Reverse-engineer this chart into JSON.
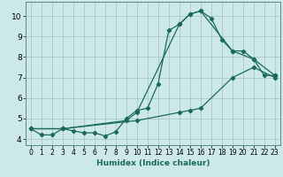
{
  "xlabel": "Humidex (Indice chaleur)",
  "bg_color": "#cce8e8",
  "grid_color": "#aac8c8",
  "line_color": "#1a6b5a",
  "spine_color": "#5a8a8a",
  "xlim": [
    -0.5,
    23.5
  ],
  "ylim": [
    3.7,
    10.7
  ],
  "yticks": [
    4,
    5,
    6,
    7,
    8,
    9,
    10
  ],
  "xticks": [
    0,
    1,
    2,
    3,
    4,
    5,
    6,
    7,
    8,
    9,
    10,
    11,
    12,
    13,
    14,
    15,
    16,
    17,
    18,
    19,
    20,
    21,
    22,
    23
  ],
  "series1_x": [
    0,
    1,
    2,
    3,
    4,
    5,
    6,
    7,
    8,
    9,
    10,
    11,
    12,
    13,
    14,
    15,
    16,
    17,
    18,
    19,
    20,
    21,
    22,
    23
  ],
  "series1_y": [
    4.5,
    4.2,
    4.2,
    4.5,
    4.4,
    4.3,
    4.3,
    4.15,
    4.35,
    5.0,
    5.4,
    5.5,
    6.7,
    9.3,
    9.6,
    10.1,
    10.25,
    9.9,
    8.85,
    8.3,
    8.3,
    7.9,
    7.1,
    7.1
  ],
  "series2_x": [
    0,
    3,
    9,
    10,
    14,
    15,
    16,
    19,
    21,
    23
  ],
  "series2_y": [
    4.5,
    4.5,
    4.9,
    5.3,
    9.6,
    10.1,
    10.25,
    8.3,
    7.9,
    7.1
  ],
  "series3_x": [
    0,
    3,
    10,
    14,
    15,
    16,
    19,
    21,
    23
  ],
  "series3_y": [
    4.5,
    4.5,
    4.9,
    5.3,
    5.4,
    5.5,
    7.0,
    7.5,
    7.0
  ]
}
